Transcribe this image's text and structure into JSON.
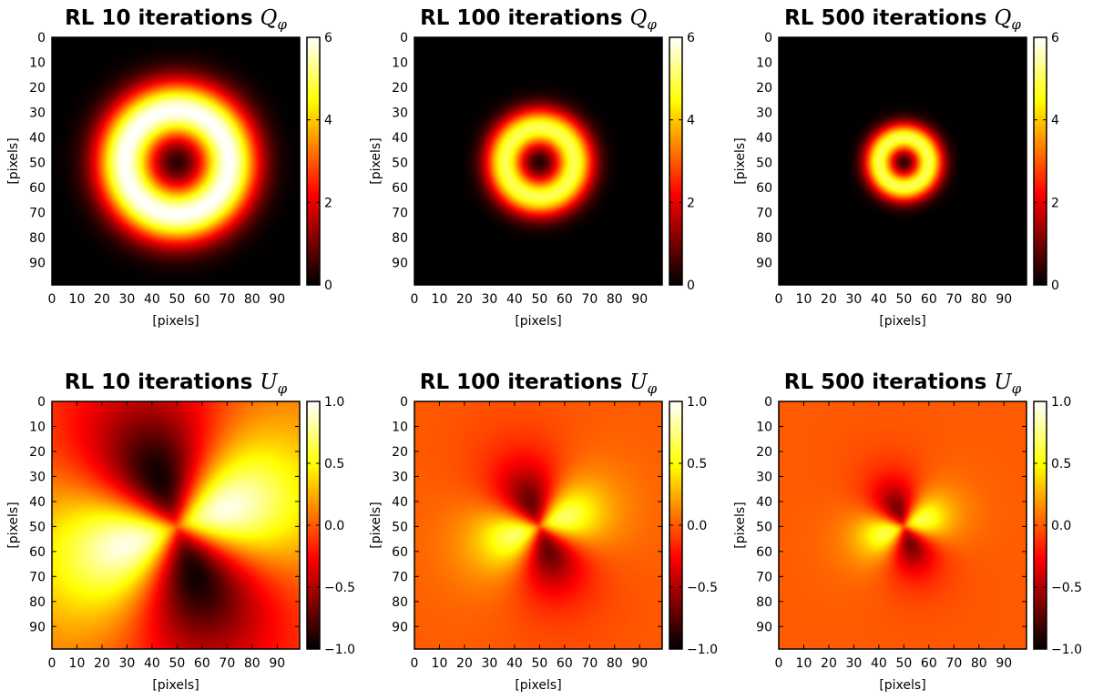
{
  "figure": {
    "colormap": "hot",
    "colormap_stops": [
      "#000000",
      "#ff0000",
      "#ffff00",
      "#ffffff"
    ]
  },
  "chart_data": [
    {
      "type": "heatmap",
      "title": "RL 10 iterations",
      "title_symbol": "Q",
      "title_subscript": "φ",
      "xlabel": "[pixels]",
      "ylabel": "[pixels]",
      "xlim": [
        0,
        99
      ],
      "ylim": [
        0,
        99
      ],
      "x_ticks": [
        "0",
        "10",
        "20",
        "30",
        "40",
        "50",
        "60",
        "70",
        "80",
        "90"
      ],
      "y_ticks": [
        "0",
        "10",
        "20",
        "30",
        "40",
        "50",
        "60",
        "70",
        "80",
        "90"
      ],
      "colorbar_range": [
        0,
        6
      ],
      "colorbar_ticks": [
        "0",
        "2",
        "4",
        "6"
      ],
      "pattern": "ring",
      "center": [
        50,
        50
      ],
      "ring_radius": 21,
      "ring_width": 12,
      "peak_value": 6
    },
    {
      "type": "heatmap",
      "title": "RL 100 iterations",
      "title_symbol": "Q",
      "title_subscript": "φ",
      "xlabel": "[pixels]",
      "ylabel": "[pixels]",
      "xlim": [
        0,
        99
      ],
      "ylim": [
        0,
        99
      ],
      "x_ticks": [
        "0",
        "10",
        "20",
        "30",
        "40",
        "50",
        "60",
        "70",
        "80",
        "90"
      ],
      "y_ticks": [
        "0",
        "10",
        "20",
        "30",
        "40",
        "50",
        "60",
        "70",
        "80",
        "90"
      ],
      "colorbar_range": [
        0,
        6
      ],
      "colorbar_ticks": [
        "0",
        "2",
        "4",
        "6"
      ],
      "pattern": "ring",
      "center": [
        50,
        50
      ],
      "ring_radius": 14,
      "ring_width": 8,
      "peak_value": 5
    },
    {
      "type": "heatmap",
      "title": "RL 500 iterations",
      "title_symbol": "Q",
      "title_subscript": "φ",
      "xlabel": "[pixels]",
      "ylabel": "[pixels]",
      "xlim": [
        0,
        99
      ],
      "ylim": [
        0,
        99
      ],
      "x_ticks": [
        "0",
        "10",
        "20",
        "30",
        "40",
        "50",
        "60",
        "70",
        "80",
        "90"
      ],
      "y_ticks": [
        "0",
        "10",
        "20",
        "30",
        "40",
        "50",
        "60",
        "70",
        "80",
        "90"
      ],
      "colorbar_range": [
        0,
        6
      ],
      "colorbar_ticks": [
        "0",
        "2",
        "4",
        "6"
      ],
      "pattern": "ring",
      "center": [
        50,
        50
      ],
      "ring_radius": 10,
      "ring_width": 6,
      "peak_value": 5
    },
    {
      "type": "heatmap",
      "title": "RL 10 iterations",
      "title_symbol": "U",
      "title_subscript": "φ",
      "xlabel": "[pixels]",
      "ylabel": "[pixels]",
      "xlim": [
        0,
        99
      ],
      "ylim": [
        0,
        99
      ],
      "x_ticks": [
        "0",
        "10",
        "20",
        "30",
        "40",
        "50",
        "60",
        "70",
        "80",
        "90"
      ],
      "y_ticks": [
        "0",
        "10",
        "20",
        "30",
        "40",
        "50",
        "60",
        "70",
        "80",
        "90"
      ],
      "colorbar_range": [
        -1.0,
        1.0
      ],
      "colorbar_ticks": [
        "−1.0",
        "−0.5",
        "0.0",
        "0.5",
        "1.0"
      ],
      "pattern": "quadrupole",
      "center": [
        50,
        50
      ],
      "lobe_radius": 22,
      "lobe_width": 18,
      "amplitude": 0.95,
      "background": 0.0
    },
    {
      "type": "heatmap",
      "title": "RL 100 iterations",
      "title_symbol": "U",
      "title_subscript": "φ",
      "xlabel": "[pixels]",
      "ylabel": "[pixels]",
      "xlim": [
        0,
        99
      ],
      "ylim": [
        0,
        99
      ],
      "x_ticks": [
        "0",
        "10",
        "20",
        "30",
        "40",
        "50",
        "60",
        "70",
        "80",
        "90"
      ],
      "y_ticks": [
        "0",
        "10",
        "20",
        "30",
        "40",
        "50",
        "60",
        "70",
        "80",
        "90"
      ],
      "colorbar_range": [
        -1.0,
        1.0
      ],
      "colorbar_ticks": [
        "−1.0",
        "−0.5",
        "0.0",
        "0.5",
        "1.0"
      ],
      "pattern": "quadrupole",
      "center": [
        50,
        50
      ],
      "lobe_radius": 11,
      "lobe_width": 7,
      "amplitude": 0.7,
      "background": 0.0
    },
    {
      "type": "heatmap",
      "title": "RL 500 iterations",
      "title_symbol": "U",
      "title_subscript": "φ",
      "xlabel": "[pixels]",
      "ylabel": "[pixels]",
      "xlim": [
        0,
        99
      ],
      "ylim": [
        0,
        99
      ],
      "x_ticks": [
        "0",
        "10",
        "20",
        "30",
        "40",
        "50",
        "60",
        "70",
        "80",
        "90"
      ],
      "y_ticks": [
        "0",
        "10",
        "20",
        "30",
        "40",
        "50",
        "60",
        "70",
        "80",
        "90"
      ],
      "colorbar_range": [
        -1.0,
        1.0
      ],
      "colorbar_ticks": [
        "−1.0",
        "−0.5",
        "0.0",
        "0.5",
        "1.0"
      ],
      "pattern": "quadrupole",
      "center": [
        50,
        50
      ],
      "lobe_radius": 8,
      "lobe_width": 5,
      "amplitude": 0.65,
      "background": 0.0
    }
  ]
}
